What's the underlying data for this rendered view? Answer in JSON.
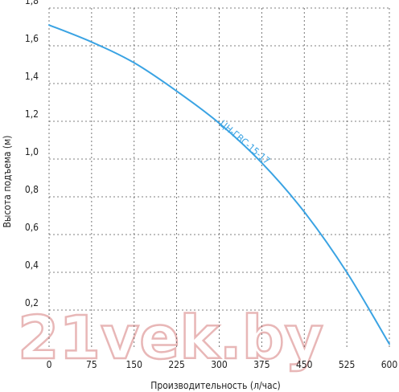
{
  "chart_data": {
    "type": "line",
    "xlabel": "Производительность (л/час)",
    "ylabel": "Высота подъема (м)",
    "xlim": [
      0,
      600
    ],
    "ylim": [
      0,
      1.8
    ],
    "x_ticks": [
      "0",
      "75",
      "150",
      "225",
      "300",
      "375",
      "450",
      "525",
      "600"
    ],
    "y_ticks": [
      "0,2",
      "0,4",
      "0,6",
      "0,8",
      "1,0",
      "1,2",
      "1,4",
      "1,6",
      "1,8"
    ],
    "grid": true,
    "series": [
      {
        "name": "ЦН-ГВС-15-17",
        "color": "#3aa3e3",
        "x": [
          0,
          75,
          150,
          225,
          300,
          375,
          450,
          525,
          600
        ],
        "y": [
          1.71,
          1.62,
          1.51,
          1.36,
          1.19,
          0.98,
          0.72,
          0.4,
          0.02
        ]
      }
    ]
  },
  "watermark": "21vek.by"
}
